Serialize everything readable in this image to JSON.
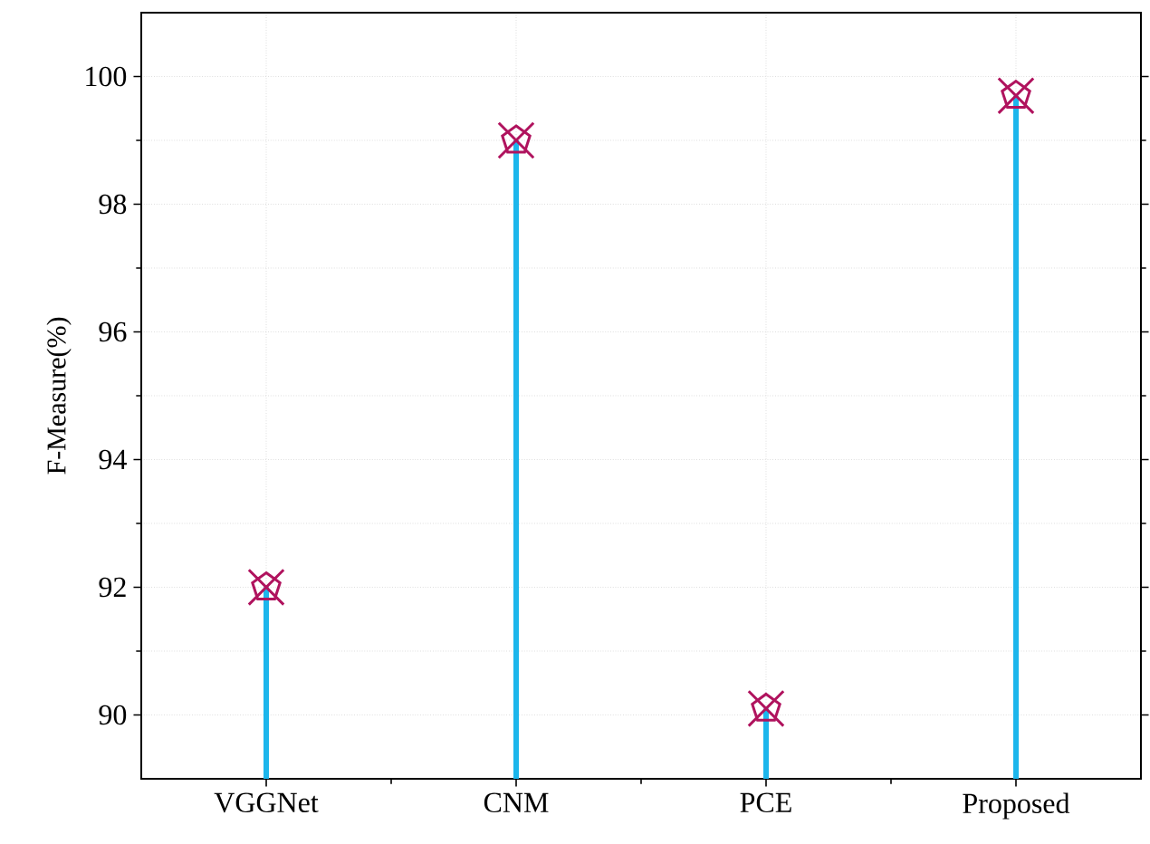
{
  "chart_data": {
    "type": "lollipop",
    "ylabel": "F-Measure(%)",
    "categories": [
      "VGGNet",
      "CNM",
      "PCE",
      "Proposed"
    ],
    "values": [
      92.0,
      99.0,
      90.1,
      99.7
    ],
    "color": "#b0135e",
    "ylim": [
      89,
      101
    ],
    "yticks": [
      90,
      92,
      94,
      96,
      98,
      100
    ],
    "grid": true,
    "marker": "cross"
  }
}
